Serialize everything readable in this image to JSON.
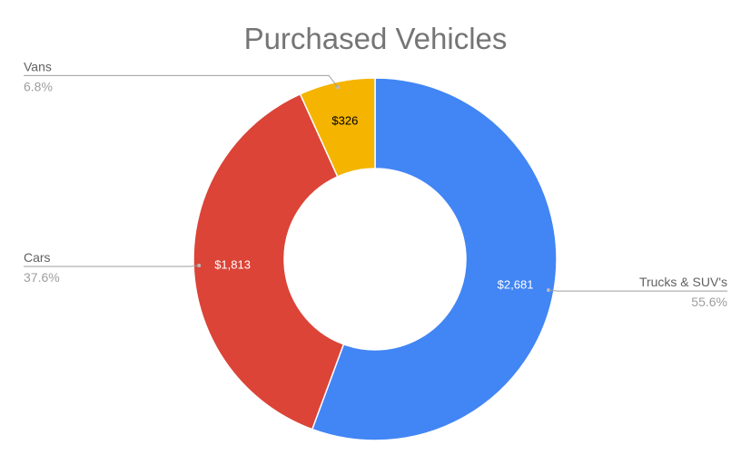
{
  "chart_data": {
    "type": "pie",
    "donut": true,
    "title": "Purchased Vehicles",
    "categories": [
      "Trucks & SUV's",
      "Cars",
      "Vans"
    ],
    "values": [
      2681,
      1813,
      326
    ],
    "value_labels": [
      "$2,681",
      "$1,813",
      "$326"
    ],
    "percent_labels": [
      "55.6%",
      "37.6%",
      "6.8%"
    ],
    "colors": [
      "#4285f4",
      "#db4437",
      "#f4b400"
    ],
    "label_colors": [
      "#ffffff",
      "#ffffff",
      "#000000"
    ],
    "start": "12 o'clock",
    "direction": "clockwise",
    "legend": "callout labels beside each slice"
  }
}
